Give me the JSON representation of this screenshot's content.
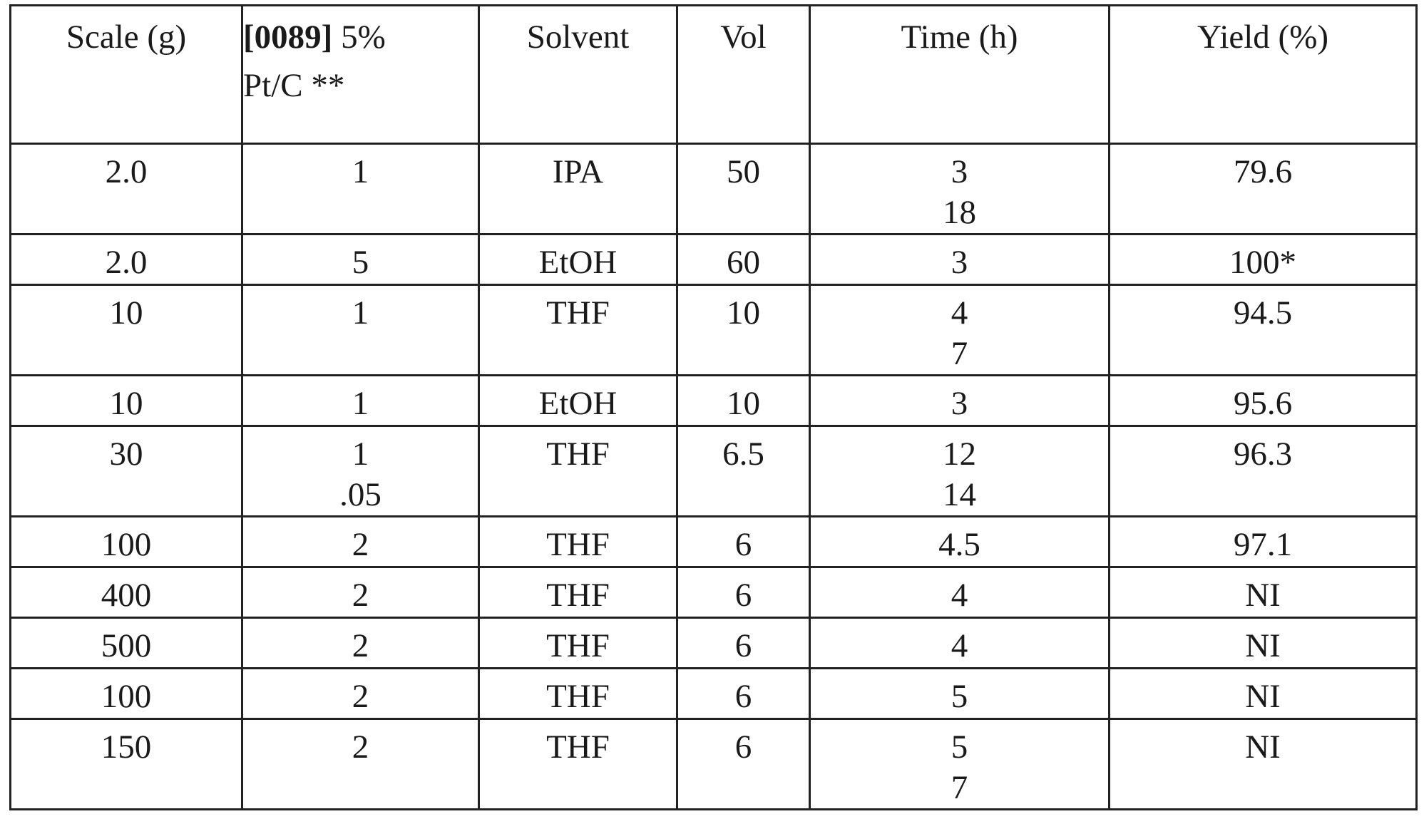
{
  "table": {
    "headers": [
      {
        "lines": [
          "Scale (g)"
        ]
      },
      {
        "ref": "[0089]",
        "lines": [
          "5%",
          "Pt/C **"
        ]
      },
      {
        "lines": [
          "Solvent"
        ]
      },
      {
        "lines": [
          "Vol"
        ]
      },
      {
        "lines": [
          "Time (h)"
        ]
      },
      {
        "lines": [
          "Yield (%)"
        ]
      }
    ],
    "rows": [
      [
        [
          "2.0"
        ],
        [
          "1"
        ],
        [
          "IPA"
        ],
        [
          "50"
        ],
        [
          "3",
          "18"
        ],
        [
          "79.6"
        ]
      ],
      [
        [
          "2.0"
        ],
        [
          "5"
        ],
        [
          "EtOH"
        ],
        [
          "60"
        ],
        [
          "3"
        ],
        [
          "100*"
        ]
      ],
      [
        [
          "10"
        ],
        [
          "1"
        ],
        [
          "THF"
        ],
        [
          "10"
        ],
        [
          "4",
          "7"
        ],
        [
          "94.5"
        ]
      ],
      [
        [
          "10"
        ],
        [
          "1"
        ],
        [
          "EtOH"
        ],
        [
          "10"
        ],
        [
          "3"
        ],
        [
          "95.6"
        ]
      ],
      [
        [
          "30"
        ],
        [
          "1",
          ".05"
        ],
        [
          "THF"
        ],
        [
          "6.5"
        ],
        [
          "12",
          "14"
        ],
        [
          "96.3"
        ]
      ],
      [
        [
          "100"
        ],
        [
          "2"
        ],
        [
          "THF"
        ],
        [
          "6"
        ],
        [
          "4.5"
        ],
        [
          "97.1"
        ]
      ],
      [
        [
          "400"
        ],
        [
          "2"
        ],
        [
          "THF"
        ],
        [
          "6"
        ],
        [
          "4"
        ],
        [
          "NI"
        ]
      ],
      [
        [
          "500"
        ],
        [
          "2"
        ],
        [
          "THF"
        ],
        [
          "6"
        ],
        [
          "4"
        ],
        [
          "NI"
        ]
      ],
      [
        [
          "100"
        ],
        [
          "2"
        ],
        [
          "THF"
        ],
        [
          "6"
        ],
        [
          "5"
        ],
        [
          "NI"
        ]
      ],
      [
        [
          "150"
        ],
        [
          "2"
        ],
        [
          "THF"
        ],
        [
          "6"
        ],
        [
          "5",
          "7"
        ],
        [
          "NI"
        ]
      ]
    ]
  }
}
